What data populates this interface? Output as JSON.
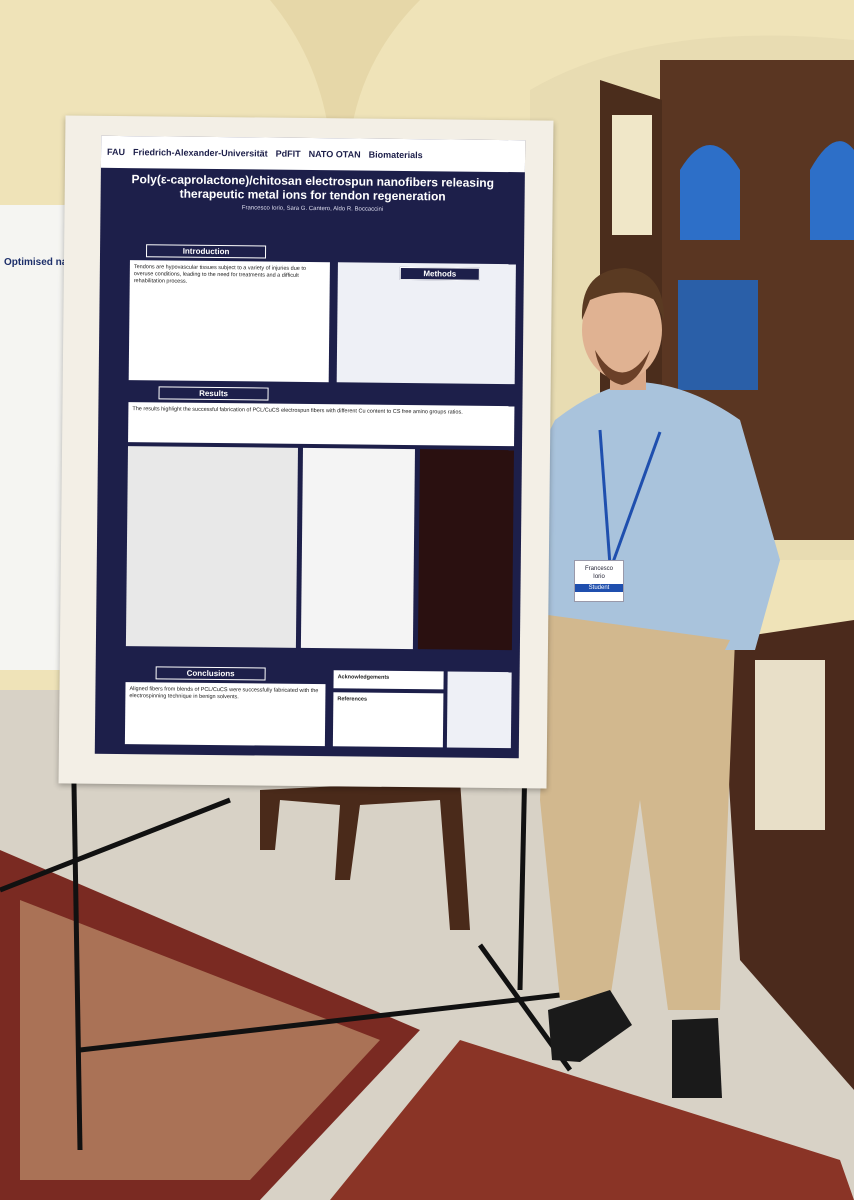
{
  "poster": {
    "logos": [
      "FAU",
      "Friedrich-Alexander-Universität",
      "PdFIT",
      "NATO OTAN",
      "Biomaterials"
    ],
    "title": "Poly(ε-caprolactone)/chitosan electrospun nanofibers releasing therapeutic metal ions for tendon regeneration",
    "authors": "Francesco Iorio, Sara G. Cantero, Aldo R. Boccaccini",
    "sections": [
      "Introduction",
      "Methods",
      "Results",
      "Conclusions"
    ],
    "intro_text": "Tendons are hypovascular tissues subject to a variety of injuries due to overuse conditions, leading to the need for treatments and a difficult rehabilitation process.",
    "results_text": "The results highlight the successful fabrication of PCL/CuCS electrospun fibers with different Cu content to CS free amino groups ratios.",
    "conclusions_text": "Aligned fibers from blends of PCL/CuCS were successfully fabricated with the electrospinning technique in benign solvents.",
    "acknowledgements": "Acknowledgements",
    "references": "References"
  },
  "side_poster": {
    "title": "Optimised na"
  },
  "badge": {
    "name": "Francesco",
    "surname": "Iorio",
    "role": "Student"
  }
}
